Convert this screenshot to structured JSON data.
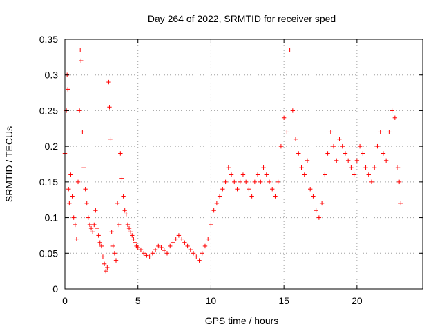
{
  "chart_data": {
    "type": "scatter",
    "title": "Day 264 of 2022, SRMTID for receiver sped",
    "xlabel": "GPS time / hours",
    "ylabel": "SRMTID / TECUs",
    "xlim": [
      0,
      24.5
    ],
    "ylim": [
      0,
      0.35
    ],
    "x_ticks": [
      0,
      5,
      10,
      15,
      20
    ],
    "x_tick_labels": [
      "0",
      "5",
      "10",
      "15",
      "20"
    ],
    "y_ticks": [
      0,
      0.05,
      0.1,
      0.15,
      0.2,
      0.25,
      0.3,
      0.35
    ],
    "y_tick_labels": [
      "0",
      "0.05",
      "0.1",
      "0.15",
      "0.2",
      "0.25",
      "0.3",
      "0.35"
    ],
    "grid": true,
    "marker": "+",
    "marker_color": "#ff0000",
    "series": [
      {
        "name": "SRMTID",
        "description_envelope": "approximate point cloud sampled along the observed envelope",
        "points": [
          [
            0.0,
            0.19
          ],
          [
            0.1,
            0.25
          ],
          [
            0.15,
            0.3
          ],
          [
            0.2,
            0.28
          ],
          [
            0.25,
            0.14
          ],
          [
            0.3,
            0.12
          ],
          [
            0.4,
            0.16
          ],
          [
            0.5,
            0.13
          ],
          [
            0.6,
            0.1
          ],
          [
            0.7,
            0.09
          ],
          [
            0.8,
            0.07
          ],
          [
            0.9,
            0.15
          ],
          [
            1.0,
            0.25
          ],
          [
            1.05,
            0.335
          ],
          [
            1.1,
            0.32
          ],
          [
            1.2,
            0.22
          ],
          [
            1.3,
            0.17
          ],
          [
            1.4,
            0.14
          ],
          [
            1.5,
            0.12
          ],
          [
            1.6,
            0.1
          ],
          [
            1.7,
            0.09
          ],
          [
            1.8,
            0.085
          ],
          [
            1.9,
            0.08
          ],
          [
            2.0,
            0.09
          ],
          [
            2.1,
            0.11
          ],
          [
            2.2,
            0.085
          ],
          [
            2.3,
            0.075
          ],
          [
            2.4,
            0.065
          ],
          [
            2.5,
            0.06
          ],
          [
            2.6,
            0.045
          ],
          [
            2.7,
            0.035
          ],
          [
            2.8,
            0.025
          ],
          [
            2.9,
            0.03
          ],
          [
            3.0,
            0.29
          ],
          [
            3.05,
            0.255
          ],
          [
            3.1,
            0.21
          ],
          [
            3.2,
            0.08
          ],
          [
            3.3,
            0.06
          ],
          [
            3.4,
            0.05
          ],
          [
            3.5,
            0.04
          ],
          [
            3.6,
            0.12
          ],
          [
            3.7,
            0.09
          ],
          [
            3.8,
            0.19
          ],
          [
            3.9,
            0.155
          ],
          [
            4.0,
            0.13
          ],
          [
            4.1,
            0.11
          ],
          [
            4.2,
            0.105
          ],
          [
            4.3,
            0.09
          ],
          [
            4.4,
            0.085
          ],
          [
            4.5,
            0.08
          ],
          [
            4.6,
            0.075
          ],
          [
            4.7,
            0.07
          ],
          [
            4.8,
            0.065
          ],
          [
            4.9,
            0.06
          ],
          [
            5.0,
            0.058
          ],
          [
            5.2,
            0.055
          ],
          [
            5.4,
            0.05
          ],
          [
            5.6,
            0.047
          ],
          [
            5.8,
            0.045
          ],
          [
            6.0,
            0.05
          ],
          [
            6.2,
            0.055
          ],
          [
            6.4,
            0.06
          ],
          [
            6.6,
            0.058
          ],
          [
            6.8,
            0.054
          ],
          [
            7.0,
            0.05
          ],
          [
            7.2,
            0.06
          ],
          [
            7.4,
            0.065
          ],
          [
            7.6,
            0.07
          ],
          [
            7.8,
            0.075
          ],
          [
            8.0,
            0.07
          ],
          [
            8.2,
            0.065
          ],
          [
            8.4,
            0.06
          ],
          [
            8.6,
            0.055
          ],
          [
            8.8,
            0.05
          ],
          [
            9.0,
            0.045
          ],
          [
            9.2,
            0.04
          ],
          [
            9.4,
            0.05
          ],
          [
            9.6,
            0.06
          ],
          [
            9.8,
            0.07
          ],
          [
            10.0,
            0.09
          ],
          [
            10.2,
            0.11
          ],
          [
            10.4,
            0.12
          ],
          [
            10.6,
            0.13
          ],
          [
            10.8,
            0.14
          ],
          [
            11.0,
            0.15
          ],
          [
            11.2,
            0.17
          ],
          [
            11.4,
            0.16
          ],
          [
            11.6,
            0.15
          ],
          [
            11.8,
            0.14
          ],
          [
            12.0,
            0.15
          ],
          [
            12.2,
            0.16
          ],
          [
            12.4,
            0.15
          ],
          [
            12.6,
            0.14
          ],
          [
            12.8,
            0.13
          ],
          [
            13.0,
            0.15
          ],
          [
            13.2,
            0.16
          ],
          [
            13.4,
            0.15
          ],
          [
            13.6,
            0.17
          ],
          [
            13.8,
            0.16
          ],
          [
            14.0,
            0.15
          ],
          [
            14.2,
            0.14
          ],
          [
            14.4,
            0.13
          ],
          [
            14.6,
            0.15
          ],
          [
            14.8,
            0.2
          ],
          [
            15.0,
            0.24
          ],
          [
            15.2,
            0.22
          ],
          [
            15.4,
            0.335
          ],
          [
            15.6,
            0.25
          ],
          [
            15.8,
            0.21
          ],
          [
            16.0,
            0.19
          ],
          [
            16.2,
            0.17
          ],
          [
            16.4,
            0.16
          ],
          [
            16.6,
            0.18
          ],
          [
            16.8,
            0.14
          ],
          [
            17.0,
            0.13
          ],
          [
            17.2,
            0.11
          ],
          [
            17.4,
            0.1
          ],
          [
            17.6,
            0.12
          ],
          [
            17.8,
            0.16
          ],
          [
            18.0,
            0.19
          ],
          [
            18.2,
            0.22
          ],
          [
            18.4,
            0.2
          ],
          [
            18.6,
            0.18
          ],
          [
            18.8,
            0.21
          ],
          [
            19.0,
            0.2
          ],
          [
            19.2,
            0.19
          ],
          [
            19.4,
            0.18
          ],
          [
            19.6,
            0.17
          ],
          [
            19.8,
            0.16
          ],
          [
            20.0,
            0.18
          ],
          [
            20.2,
            0.2
          ],
          [
            20.4,
            0.19
          ],
          [
            20.6,
            0.17
          ],
          [
            20.8,
            0.16
          ],
          [
            21.0,
            0.15
          ],
          [
            21.2,
            0.17
          ],
          [
            21.4,
            0.2
          ],
          [
            21.6,
            0.22
          ],
          [
            21.8,
            0.19
          ],
          [
            22.0,
            0.18
          ],
          [
            22.2,
            0.22
          ],
          [
            22.4,
            0.25
          ],
          [
            22.6,
            0.24
          ],
          [
            22.8,
            0.17
          ],
          [
            22.9,
            0.15
          ],
          [
            23.0,
            0.12
          ]
        ]
      }
    ]
  }
}
